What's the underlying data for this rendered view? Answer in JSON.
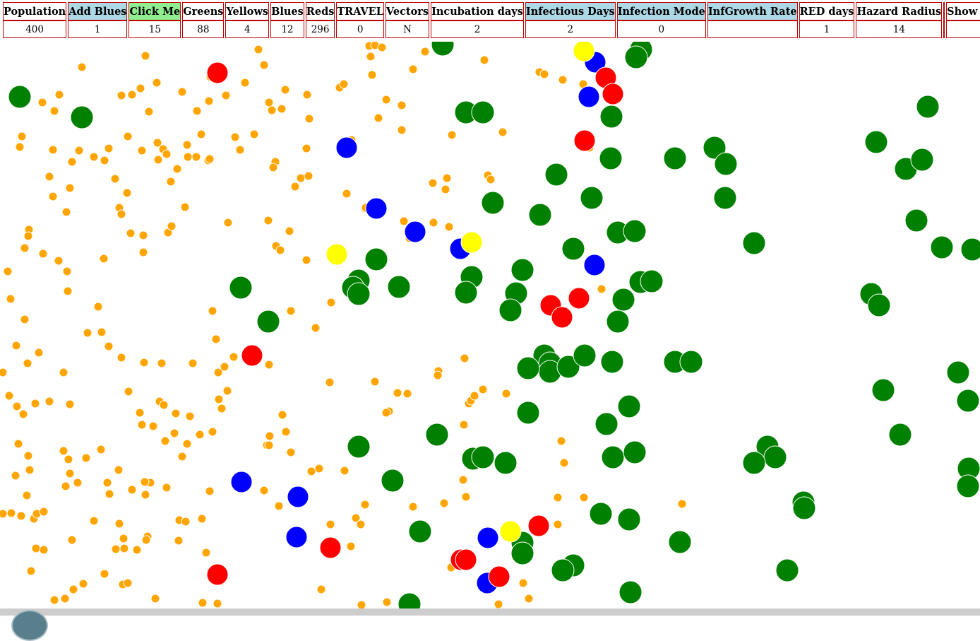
{
  "stats": [
    {
      "label": "Population",
      "value": "400",
      "style": "plain",
      "interactive": false,
      "name": "population"
    },
    {
      "label": "Add Blues",
      "value": "1",
      "style": "blue",
      "interactive": true,
      "name": "add-blues"
    },
    {
      "label": "Click Me",
      "value": "15",
      "style": "green",
      "interactive": true,
      "name": "click-me"
    },
    {
      "label": "Greens",
      "value": "88",
      "style": "plain",
      "interactive": false,
      "name": "greens"
    },
    {
      "label": "Yellows",
      "value": "4",
      "style": "plain",
      "interactive": false,
      "name": "yellows"
    },
    {
      "label": "Blues",
      "value": "12",
      "style": "plain",
      "interactive": false,
      "name": "blues"
    },
    {
      "label": "Reds",
      "value": "296",
      "style": "plain",
      "interactive": false,
      "name": "reds"
    },
    {
      "label": "TRAVEL",
      "value": "0",
      "style": "plain",
      "interactive": true,
      "name": "travel"
    },
    {
      "label": "Vectors",
      "value": "N",
      "style": "plain",
      "interactive": true,
      "name": "vectors"
    },
    {
      "label": "Incubation days",
      "value": "2",
      "style": "plain",
      "interactive": false,
      "name": "incubation-days"
    },
    {
      "label": "Infectious Days",
      "value": "2",
      "style": "blue",
      "interactive": true,
      "name": "infectious-days"
    },
    {
      "label": "Infection Mode",
      "value": "0",
      "style": "blue",
      "interactive": true,
      "name": "infection-mode"
    },
    {
      "label": "InfGrowth Rate",
      "value": "",
      "style": "blue",
      "interactive": true,
      "name": "infgrowth-rate"
    },
    {
      "label": "RED days",
      "value": "1",
      "style": "plain",
      "interactive": false,
      "name": "red-days"
    },
    {
      "label": "Hazard Radius",
      "value": "14",
      "style": "plain",
      "interactive": false,
      "name": "hazard-radius"
    },
    {
      "label": "",
      "value": "",
      "style": "plain",
      "interactive": false,
      "name": "spacer"
    },
    {
      "label": "Show Chart",
      "value": "",
      "style": "plain",
      "interactive": true,
      "name": "show-chart"
    }
  ],
  "colors": {
    "orange": "#ffa500",
    "green": "#008000",
    "blue": "#0000ff",
    "red": "#ff0000",
    "yellow": "#ffff00",
    "border": "#c00000",
    "header_blue": "#add8e6",
    "header_green": "#90ee90"
  }
}
